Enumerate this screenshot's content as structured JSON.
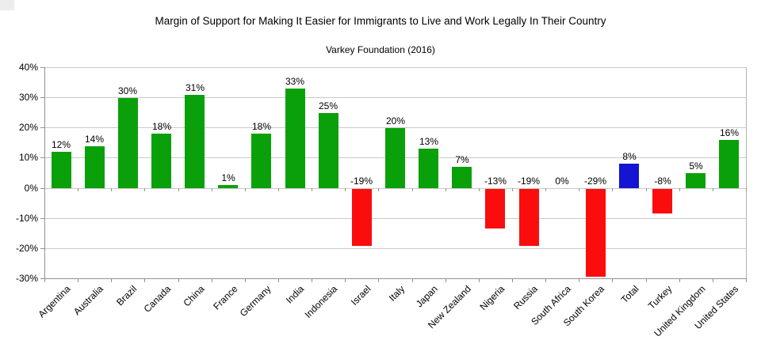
{
  "colors": {
    "positive": "#0aa00a",
    "negative": "#fb0d0d",
    "total": "#1414d2",
    "gridline": "#c9c9c9",
    "axis": "#919191",
    "plot_border": "#b3b3b3",
    "text": "#000000",
    "background": "#ffffff"
  },
  "chart_data": {
    "type": "bar",
    "title": "Margin of Support for Making It Easier for Immigrants to Live and Work Legally In Their Country",
    "subtitle": "Varkey Foundation (2016)",
    "categories": [
      "Argentina",
      "Australia",
      "Brazil",
      "Canada",
      "China",
      "France",
      "Germany",
      "India",
      "Indonesia",
      "Israel",
      "Italy",
      "Japan",
      "New Zealand",
      "Nigeria",
      "Russia",
      "South Africa",
      "South Korea",
      "Total",
      "Turkey",
      "United Kingdom",
      "United States"
    ],
    "values": [
      12,
      14,
      30,
      18,
      31,
      1,
      18,
      33,
      25,
      -19,
      20,
      13,
      7,
      -13,
      -19,
      0,
      -29,
      8,
      -8,
      5,
      16
    ],
    "data_labels": [
      "12%",
      "14%",
      "30%",
      "18%",
      "31%",
      "1%",
      "18%",
      "33%",
      "25%",
      "-19%",
      "20%",
      "13%",
      "7%",
      "-13%",
      "-19%",
      "0%",
      "-29%",
      "8%",
      "-8%",
      "5%",
      "16%"
    ],
    "bar_color_roles": [
      "positive",
      "positive",
      "positive",
      "positive",
      "positive",
      "positive",
      "positive",
      "positive",
      "positive",
      "negative",
      "positive",
      "positive",
      "positive",
      "negative",
      "negative",
      "positive",
      "negative",
      "total",
      "negative",
      "positive",
      "positive"
    ],
    "xlabel": "",
    "ylabel": "",
    "ylim": [
      -30,
      40
    ],
    "ytick_values": [
      40,
      30,
      20,
      10,
      0,
      -10,
      -20,
      -30
    ],
    "ytick_labels": [
      "40%",
      "30%",
      "20%",
      "10%",
      "0%",
      "-10%",
      "-20%",
      "-30%"
    ],
    "grid": true,
    "legend": "none",
    "x_label_rotation_deg": 45
  }
}
